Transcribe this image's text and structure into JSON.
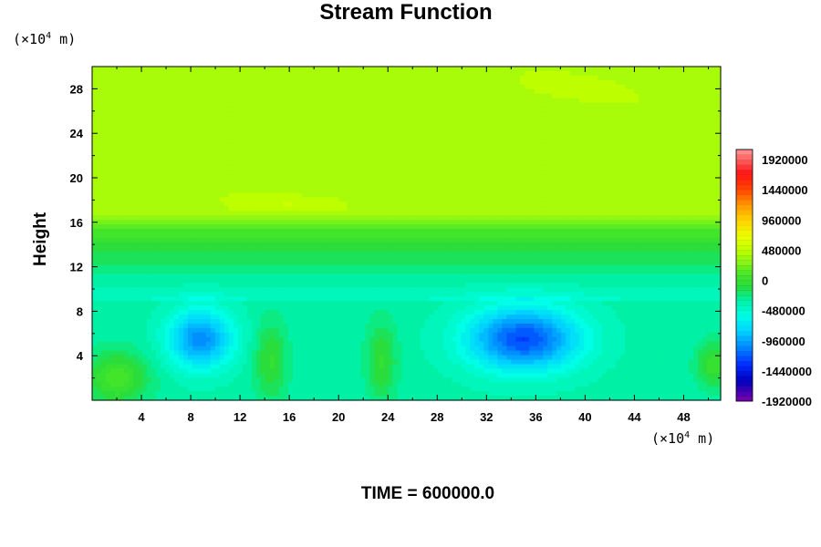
{
  "chart_data": {
    "type": "heatmap",
    "title": "Stream Function",
    "ylabel": "Height",
    "y_unit_prefix": "(×10",
    "y_unit_exp": "4",
    "y_unit_suffix": " m)",
    "x_unit_prefix": "(×10",
    "x_unit_exp": "4",
    "x_unit_suffix": " m)",
    "xlim": [
      0,
      51
    ],
    "ylim": [
      0,
      30
    ],
    "x_ticks": [
      "4",
      "8",
      "12",
      "16",
      "20",
      "24",
      "28",
      "32",
      "36",
      "40",
      "44",
      "48"
    ],
    "y_ticks": [
      "4",
      "8",
      "12",
      "16",
      "20",
      "24",
      "28"
    ],
    "colorbar": {
      "min": -1920000,
      "max": 2080000,
      "labels": [
        "1920000",
        "1440000",
        "960000",
        "480000",
        "0",
        "-480000",
        "-960000",
        "-1440000",
        "-1920000"
      ],
      "label_values": [
        1920000,
        1440000,
        960000,
        480000,
        0,
        -480000,
        -960000,
        -1440000,
        -1920000
      ]
    },
    "features": [
      {
        "kind": "minimum",
        "x": 8.8,
        "y": 5.5,
        "value": -1050000
      },
      {
        "kind": "minimum",
        "x": 35.0,
        "y": 5.5,
        "value": -1250000
      },
      {
        "kind": "weak maximum",
        "x": 17.0,
        "y": 17.5,
        "value": 480000
      }
    ],
    "time_label": "TIME = 600000.0"
  },
  "colors": {
    "background": "#ffffff",
    "field_positive": "#aaff00",
    "field_zero": "#33ee22",
    "field_negative": "#00ffee"
  }
}
